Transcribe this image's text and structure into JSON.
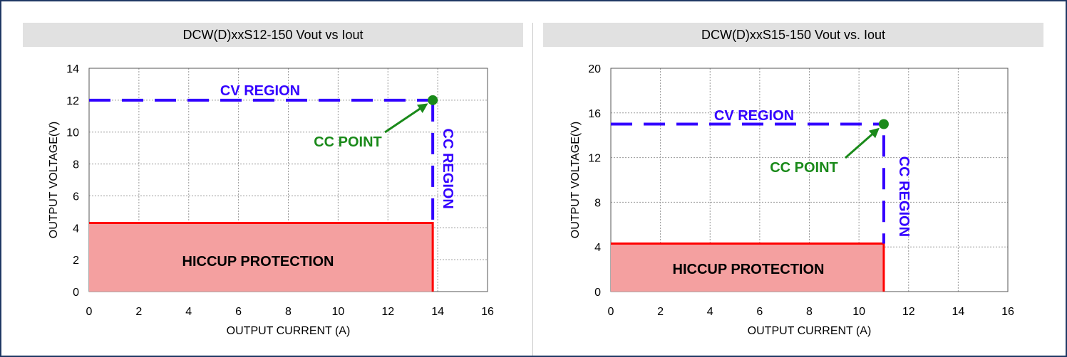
{
  "chart_data": [
    {
      "type": "line",
      "title": "DCW(D)xxS12-150 Vout vs Iout",
      "xlabel": "OUTPUT CURRENT (A)",
      "ylabel": "OUTPUT VOLTAGE(V)",
      "xlim": [
        0,
        16
      ],
      "ylim": [
        0,
        14
      ],
      "xticks": [
        0,
        2,
        4,
        6,
        8,
        10,
        12,
        14,
        16
      ],
      "yticks": [
        0,
        2,
        4,
        6,
        8,
        10,
        12,
        14
      ],
      "grid": true,
      "cv_line": {
        "x": [
          0,
          13.8
        ],
        "y": [
          12,
          12
        ]
      },
      "cc_line": {
        "x": [
          13.8,
          13.8
        ],
        "y": [
          12,
          4.3
        ]
      },
      "cc_point": {
        "x": 13.8,
        "y": 12
      },
      "hiccup_region": {
        "x": [
          0,
          13.8
        ],
        "y": [
          0,
          4.3
        ]
      },
      "labels": {
        "cv": "CV REGION",
        "cc": "CC REGION",
        "cc_point": "CC POINT",
        "hiccup": "HICCUP PROTECTION"
      },
      "colors": {
        "cv_cc": "#3300ff",
        "point": "#1a8a1a",
        "hiccup_fill": "#f4a0a0",
        "hiccup_edge": "#ff0000"
      }
    },
    {
      "type": "line",
      "title": "DCW(D)xxS15-150 Vout vs. Iout",
      "xlabel": "OUTPUT CURRENT (A)",
      "ylabel": "OUTPUT VOLTAGE(V)",
      "xlim": [
        0,
        16
      ],
      "ylim": [
        0,
        20
      ],
      "xticks": [
        0,
        2,
        4,
        6,
        8,
        10,
        12,
        14,
        16
      ],
      "yticks": [
        0,
        4,
        8,
        12,
        16,
        20
      ],
      "grid": true,
      "cv_line": {
        "x": [
          0,
          11
        ],
        "y": [
          15,
          15
        ]
      },
      "cc_line": {
        "x": [
          11,
          11
        ],
        "y": [
          14,
          4.3
        ]
      },
      "cc_point": {
        "x": 11,
        "y": 15
      },
      "hiccup_region": {
        "x": [
          0,
          11
        ],
        "y": [
          0,
          4.3
        ]
      },
      "labels": {
        "cv": "CV REGION",
        "cc": "CC REGION",
        "cc_point": "CC POINT",
        "hiccup": "HICCUP PROTECTION"
      },
      "colors": {
        "cv_cc": "#3300ff",
        "point": "#1a8a1a",
        "hiccup_fill": "#f4a0a0",
        "hiccup_edge": "#ff0000"
      }
    }
  ]
}
